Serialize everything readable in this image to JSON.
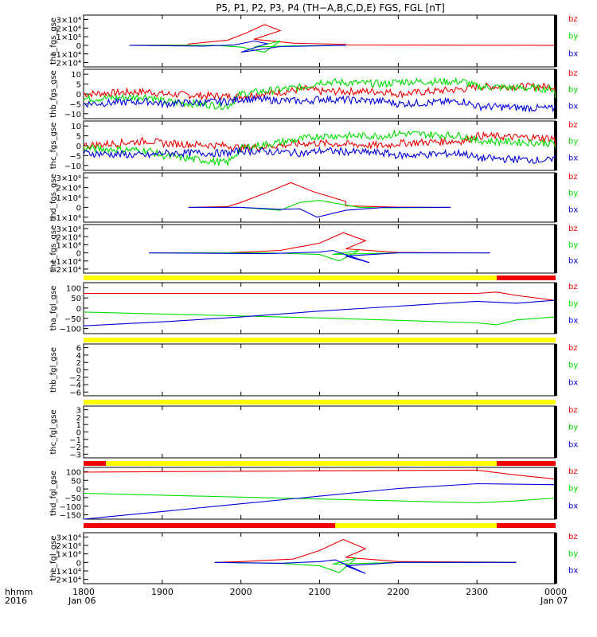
{
  "title": "P5, P1, P2, P3, P4 (TH−A,B,C,D,E) FGS, FGL [nT]",
  "x_axis": {
    "ticks": [
      "1800",
      "1900",
      "2000",
      "2100",
      "2200",
      "2300",
      "0000"
    ],
    "row_label_1": "hhmm",
    "row_label_2": "2016",
    "date_left": "Jan 06",
    "date_right": "Jan 07"
  },
  "colors": {
    "bz": "#ee0000",
    "by": "#00dd00",
    "bx": "#0000dd",
    "bar_yellow": "#ffff00",
    "bar_red": "#ee0000"
  },
  "chart_data": [
    {
      "type": "line",
      "ylabel": "tha_fgs_gse",
      "ylim": [
        -25000,
        35000
      ],
      "yticks": [
        "3×10⁴",
        "2×10⁴",
        "1×10⁴",
        "0",
        "−1×10⁴",
        "−2×10⁴"
      ],
      "series": [
        {
          "name": "bz",
          "x": [
            1835,
            1880,
            1920,
            1950,
            1965,
            1978,
            1990,
            2010,
            2040,
            2080,
            2120,
            2300,
            2359
          ],
          "values": [
            0,
            300,
            1500,
            6000,
            15000,
            24000,
            17000,
            7000,
            2500,
            1000,
            500,
            100,
            0
          ]
        },
        {
          "name": "by",
          "x": [
            1835,
            1940,
            1960,
            1978,
            1990,
            2010,
            2040,
            2120
          ],
          "values": [
            0,
            0,
            -2000,
            -8000,
            5000,
            -2000,
            -500,
            0
          ]
        },
        {
          "name": "bx",
          "x": [
            1835,
            1930,
            1955,
            1970,
            1980,
            2000,
            2030,
            2120
          ],
          "values": [
            0,
            -1000,
            500,
            5000,
            2000,
            -8000,
            -1500,
            0
          ]
        }
      ]
    },
    {
      "type": "line",
      "ylabel": "thb_fgs_gse",
      "ylim": [
        -10,
        10
      ],
      "yticks": [
        "10",
        "5",
        "0",
        "−5",
        "−10"
      ],
      "series": [
        {
          "name": "bz",
          "x": [
            1800,
            1850,
            1900,
            1950,
            2000,
            2050,
            2100,
            2150,
            2200,
            2250,
            2300,
            2359
          ],
          "values": [
            0,
            1,
            0,
            -1,
            -1,
            2,
            1,
            1,
            0,
            2,
            3,
            3
          ]
        },
        {
          "name": "by",
          "x": [
            1800,
            1850,
            1900,
            1950,
            2000,
            2050,
            2100,
            2150,
            2200,
            2250,
            2300,
            2359
          ],
          "values": [
            -2,
            -1,
            -3,
            -5,
            0,
            3,
            5,
            4,
            5,
            5,
            3,
            2
          ]
        },
        {
          "name": "bx",
          "x": [
            1800,
            1850,
            1900,
            1950,
            2000,
            2050,
            2100,
            2150,
            2200,
            2250,
            2300,
            2359
          ],
          "values": [
            -4,
            -3,
            -4,
            -3,
            -2,
            -3,
            -2,
            -3,
            -4,
            -3,
            -5,
            -6
          ]
        }
      ]
    },
    {
      "type": "line",
      "ylabel": "thc_fgs_gse",
      "ylim": [
        -10,
        10
      ],
      "yticks": [
        "10",
        "5",
        "0",
        "−5",
        "−10"
      ],
      "series": [
        {
          "name": "bz",
          "x": [
            1800,
            1850,
            1900,
            1950,
            2000,
            2050,
            2100,
            2150,
            2200,
            2250,
            2300,
            2359
          ],
          "values": [
            0,
            2,
            1,
            0,
            -1,
            1,
            1,
            0,
            1,
            2,
            4,
            3
          ]
        },
        {
          "name": "by",
          "x": [
            1800,
            1850,
            1900,
            1950,
            2000,
            2050,
            2100,
            2150,
            2200,
            2250,
            2300,
            2359
          ],
          "values": [
            -1,
            -2,
            -4,
            -7,
            -1,
            3,
            4,
            4,
            5,
            4,
            2,
            1
          ]
        },
        {
          "name": "bx",
          "x": [
            1800,
            1850,
            1900,
            1950,
            2000,
            2050,
            2100,
            2150,
            2200,
            2250,
            2300,
            2359
          ],
          "values": [
            -3,
            -4,
            -3,
            -3,
            -2,
            -3,
            -2,
            -3,
            -4,
            -3,
            -5,
            -6
          ]
        }
      ]
    },
    {
      "type": "line",
      "ylabel": "thd_fgs_gse",
      "ylim": [
        -15000,
        35000
      ],
      "yticks": [
        "3×10⁴",
        "2×10⁴",
        "1×10⁴",
        "0",
        "−1×10⁴"
      ],
      "series": [
        {
          "name": "bz",
          "x": [
            1880,
            1950,
            2000,
            2020,
            2038,
            2055,
            2080,
            2120,
            2200,
            2240
          ],
          "values": [
            0,
            800,
            5000,
            15000,
            25000,
            16000,
            6000,
            1500,
            200,
            0
          ]
        },
        {
          "name": "by",
          "x": [
            1880,
            2000,
            2030,
            2045,
            2060,
            2090,
            2150,
            2240
          ],
          "values": [
            0,
            0,
            -3000,
            5000,
            7000,
            0,
            -500,
            0
          ]
        },
        {
          "name": "bx",
          "x": [
            1880,
            2000,
            2030,
            2045,
            2058,
            2080,
            2150,
            2240
          ],
          "values": [
            0,
            0,
            -2000,
            -1500,
            -10000,
            -3000,
            0,
            0
          ]
        }
      ]
    },
    {
      "type": "line",
      "ylabel": "the_fgs_gse",
      "ylim": [
        -25000,
        35000
      ],
      "yticks": [
        "3×10⁴",
        "2×10⁴",
        "1×10⁴",
        "0",
        "−1×10⁴",
        "−2×10⁴"
      ],
      "series": [
        {
          "name": "bz",
          "x": [
            1850,
            1950,
            2030,
            2060,
            2078,
            2095,
            2120,
            2200,
            2270
          ],
          "values": [
            0,
            200,
            3000,
            12000,
            25000,
            15000,
            5000,
            500,
            0
          ]
        },
        {
          "name": "by",
          "x": [
            1850,
            2020,
            2060,
            2075,
            2090,
            2110,
            2200,
            2270
          ],
          "values": [
            0,
            0,
            -2000,
            -10000,
            3000,
            -2000,
            0,
            0
          ]
        },
        {
          "name": "bx",
          "x": [
            1850,
            2020,
            2060,
            2070,
            2098,
            2120,
            2200,
            2270
          ],
          "values": [
            0,
            -1000,
            1000,
            3000,
            -12000,
            -4000,
            0,
            0
          ]
        }
      ]
    },
    {
      "type": "line",
      "ylabel": "tha_fgl_gse",
      "ylim": [
        -130,
        130
      ],
      "yticks": [
        "100",
        "50",
        "0",
        "−50",
        "−100"
      ],
      "series": [
        {
          "name": "bz",
          "x": [
            1800,
            1900,
            2000,
            2100,
            2200,
            2300,
            2315,
            2330,
            2359
          ],
          "values": [
            75,
            75,
            75,
            75,
            75,
            75,
            82,
            65,
            40
          ]
        },
        {
          "name": "by",
          "x": [
            1800,
            1900,
            2000,
            2100,
            2200,
            2300,
            2315,
            2330,
            2359
          ],
          "values": [
            -20,
            -30,
            -40,
            -50,
            -62,
            -75,
            -85,
            -60,
            -45
          ]
        },
        {
          "name": "bx",
          "x": [
            1800,
            1900,
            2000,
            2100,
            2200,
            2300,
            2330,
            2359
          ],
          "values": [
            -90,
            -70,
            -45,
            -15,
            10,
            35,
            25,
            40
          ]
        }
      ]
    },
    {
      "type": "line",
      "ylabel": "thb_fgl_gse",
      "ylim": [
        -7,
        7
      ],
      "yticks": [
        "6",
        "4",
        "2",
        "0",
        "−2",
        "−4",
        "−6"
      ],
      "series": []
    },
    {
      "type": "line",
      "ylabel": "thc_fgl_gse",
      "ylim": [
        -3.5,
        3.5
      ],
      "yticks": [
        "3",
        "2",
        "1",
        "0",
        "−1",
        "−2",
        "−3"
      ],
      "series": []
    },
    {
      "type": "line",
      "ylabel": "thd_fgl_gse",
      "ylim": [
        -150,
        120
      ],
      "yticks": [
        "100",
        "50",
        "0",
        "−50",
        "−100",
        "−150"
      ],
      "series": [
        {
          "name": "bz",
          "x": [
            1800,
            1900,
            2000,
            2100,
            2200,
            2300,
            2330,
            2359
          ],
          "values": [
            95,
            98,
            100,
            102,
            104,
            106,
            80,
            60
          ]
        },
        {
          "name": "by",
          "x": [
            1800,
            1900,
            2000,
            2100,
            2200,
            2300,
            2330,
            2359
          ],
          "values": [
            -15,
            -25,
            -35,
            -45,
            -55,
            -65,
            -55,
            -40
          ]
        },
        {
          "name": "bx",
          "x": [
            1800,
            1900,
            2000,
            2100,
            2200,
            2300,
            2359
          ],
          "values": [
            -150,
            -110,
            -70,
            -30,
            10,
            35,
            30
          ]
        }
      ]
    },
    {
      "type": "line",
      "ylabel": "the_fgl_gse",
      "ylim": [
        -25000,
        35000
      ],
      "yticks": [
        "3×10⁴",
        "2×10⁴",
        "1×10⁴",
        "0",
        "−1×10⁴",
        "−2×10⁴"
      ],
      "series": [
        {
          "name": "bz",
          "x": [
            1940,
            2000,
            2040,
            2060,
            2078,
            2095,
            2120,
            2200,
            2290
          ],
          "values": [
            0,
            1000,
            4000,
            14000,
            27000,
            16000,
            6000,
            1000,
            200
          ]
        },
        {
          "name": "by",
          "x": [
            1940,
            2030,
            2060,
            2075,
            2088,
            2110,
            2200,
            2290
          ],
          "values": [
            0,
            -1000,
            -4000,
            -12000,
            5000,
            -2000,
            0,
            0
          ]
        },
        {
          "name": "bx",
          "x": [
            1940,
            2030,
            2060,
            2072,
            2095,
            2120,
            2200,
            2290
          ],
          "values": [
            0,
            -1000,
            1000,
            3000,
            -13000,
            -4000,
            0,
            0
          ]
        }
      ]
    }
  ],
  "bars": [
    {
      "after_panel": 4,
      "segments": [
        {
          "from": 1800,
          "to": 2315,
          "color": "yellow"
        },
        {
          "from": 2315,
          "to": 2400,
          "color": "red"
        }
      ]
    },
    {
      "after_panel": 5,
      "segments": [
        {
          "from": 1800,
          "to": 2400,
          "color": "yellow"
        }
      ]
    },
    {
      "after_panel": 6,
      "segments": [
        {
          "from": 1800,
          "to": 2400,
          "color": "yellow"
        }
      ]
    },
    {
      "after_panel": 7,
      "segments": [
        {
          "from": 1800,
          "to": 1817,
          "color": "red"
        },
        {
          "from": 1817,
          "to": 2315,
          "color": "yellow"
        },
        {
          "from": 2315,
          "to": 2400,
          "color": "red"
        }
      ]
    },
    {
      "after_panel": 8,
      "segments": [
        {
          "from": 1800,
          "to": 2072,
          "color": "red"
        },
        {
          "from": 2072,
          "to": 2080,
          "color": "yellow"
        },
        {
          "from": 2080,
          "to": 2085,
          "color": "red"
        },
        {
          "from": 2085,
          "to": 2090,
          "color": "yellow"
        },
        {
          "from": 2090,
          "to": 2112,
          "color": "red"
        },
        {
          "from": 2112,
          "to": 2315,
          "color": "yellow"
        },
        {
          "from": 2315,
          "to": 2400,
          "color": "red"
        }
      ]
    }
  ]
}
